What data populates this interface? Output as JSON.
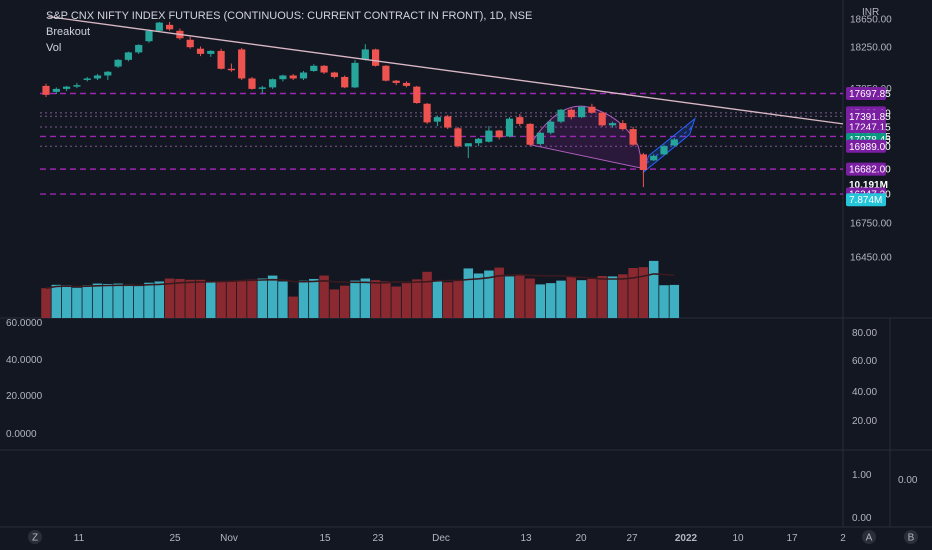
{
  "header": {
    "title": "S&P CNX NIFTY INDEX FUTURES (CONTINUOUS: CURRENT CONTRACT IN FRONT), 1D, NSE",
    "indicators": [
      "Breakout",
      "Vol"
    ],
    "currency": "INR"
  },
  "price_scale": {
    "ticks": [
      "18650.00",
      "18250.00",
      "17850.00",
      "16750.00",
      "16450.00"
    ],
    "tags": [
      {
        "label": "17697.85",
        "price": 17697.85,
        "kind": "purple"
      },
      {
        "label": "17436.90",
        "price": 17436.9,
        "kind": "purple"
      },
      {
        "label": "17391.85",
        "price": 17391.85,
        "kind": "purple"
      },
      {
        "label": "17247.15",
        "price": 17247.15,
        "kind": "purple"
      },
      {
        "label": "17121.05",
        "price": 17121.05,
        "kind": "purple"
      },
      {
        "label": "17078.45",
        "price": 17078.45,
        "kind": "teal"
      },
      {
        "label": "16989.00",
        "price": 16989.0,
        "kind": "purple"
      },
      {
        "label": "16682.00",
        "price": 16682.0,
        "kind": "purple"
      },
      {
        "label": "10.191M",
        "price": 16478,
        "kind": "dark"
      },
      {
        "label": "16347.20",
        "price": 16347.2,
        "kind": "purple"
      },
      {
        "label": "7.874M",
        "price": 16271,
        "kind": "cyan"
      }
    ]
  },
  "levels": [
    {
      "price": 17697.85,
      "style": "dashed"
    },
    {
      "price": 17436.9,
      "style": "dotted"
    },
    {
      "price": 17391.85,
      "style": "dotted"
    },
    {
      "price": 17247.15,
      "style": "dotted"
    },
    {
      "price": 17121.05,
      "style": "dashed"
    },
    {
      "price": 16989.0,
      "style": "dotted"
    },
    {
      "price": 16682.0,
      "style": "dashed"
    },
    {
      "price": 16347.2,
      "style": "dashed"
    }
  ],
  "panes": {
    "osc1": {
      "left_ticks": [
        "60.0000",
        "40.0000",
        "20.0000",
        "0.0000"
      ],
      "right_ticks": [
        "80.00",
        "60.00",
        "40.00",
        "20.00"
      ]
    },
    "osc2": {
      "right_ticks": [
        "1.00",
        "0.00"
      ],
      "value": "0.00"
    }
  },
  "time_axis": {
    "labels": [
      "11",
      "25",
      "Nov",
      "15",
      "23",
      "Dec",
      "13",
      "20",
      "27",
      "2022",
      "10",
      "17",
      "2"
    ],
    "corner_left": "Z",
    "corner_right": [
      "A",
      "B"
    ]
  },
  "colors": {
    "bg": "#131722",
    "up": "#26a69a",
    "down": "#ef5350",
    "vol_up": "#3fb0c2",
    "vol_down": "#8a2a30",
    "level": "#9c27b0",
    "tag": "#7b1fa2",
    "last": "#089981"
  },
  "chart_data": {
    "type": "candlestick",
    "title": "S&P CNX NIFTY INDEX FUTURES (CONTINUOUS: CURRENT CONTRACT IN FRONT), 1D, NSE",
    "ylim": [
      16450,
      18700
    ],
    "candles": [
      [
        17800,
        17830,
        17650,
        17680
      ],
      [
        17720,
        17780,
        17690,
        17760
      ],
      [
        17760,
        17800,
        17730,
        17790
      ],
      [
        17790,
        17840,
        17770,
        17810
      ],
      [
        17880,
        17920,
        17860,
        17900
      ],
      [
        17900,
        17960,
        17880,
        17940
      ],
      [
        17940,
        18000,
        17880,
        17990
      ],
      [
        18060,
        18160,
        18040,
        18150
      ],
      [
        18150,
        18260,
        18130,
        18250
      ],
      [
        18250,
        18360,
        18230,
        18350
      ],
      [
        18400,
        18560,
        18380,
        18540
      ],
      [
        18540,
        18660,
        18530,
        18650
      ],
      [
        18620,
        18660,
        18540,
        18560
      ],
      [
        18540,
        18570,
        18420,
        18440
      ],
      [
        18420,
        18460,
        18300,
        18320
      ],
      [
        18300,
        18330,
        18200,
        18230
      ],
      [
        18230,
        18280,
        18190,
        18270
      ],
      [
        18270,
        18300,
        18020,
        18030
      ],
      [
        18030,
        18100,
        17990,
        18010
      ],
      [
        18290,
        18310,
        17880,
        17900
      ],
      [
        17900,
        17920,
        17750,
        17760
      ],
      [
        17760,
        17800,
        17700,
        17780
      ],
      [
        17780,
        17900,
        17760,
        17890
      ],
      [
        17890,
        17950,
        17860,
        17940
      ],
      [
        17940,
        17960,
        17880,
        17900
      ],
      [
        17900,
        18000,
        17880,
        17980
      ],
      [
        18000,
        18090,
        17990,
        18070
      ],
      [
        18070,
        18080,
        17960,
        17980
      ],
      [
        17980,
        17990,
        17900,
        17920
      ],
      [
        17920,
        17940,
        17770,
        17780
      ],
      [
        17780,
        18150,
        17770,
        18110
      ],
      [
        18150,
        18360,
        18140,
        18290
      ],
      [
        18290,
        18300,
        18060,
        18070
      ],
      [
        18070,
        18080,
        17860,
        17870
      ],
      [
        17870,
        17880,
        17810,
        17840
      ],
      [
        17840,
        17860,
        17780,
        17800
      ],
      [
        17790,
        17800,
        17560,
        17570
      ],
      [
        17560,
        17570,
        17290,
        17310
      ],
      [
        17320,
        17400,
        17260,
        17380
      ],
      [
        17390,
        17410,
        17220,
        17240
      ],
      [
        17230,
        17250,
        16970,
        16990
      ],
      [
        16990,
        17020,
        16830,
        17030
      ],
      [
        17030,
        17100,
        16990,
        17090
      ],
      [
        17050,
        17260,
        17040,
        17200
      ],
      [
        17200,
        17210,
        17080,
        17110
      ],
      [
        17120,
        17380,
        17110,
        17360
      ],
      [
        17380,
        17420,
        17260,
        17290
      ],
      [
        17290,
        17300,
        16990,
        17010
      ],
      [
        17020,
        17180,
        17000,
        17170
      ],
      [
        17170,
        17340,
        17150,
        17320
      ],
      [
        17320,
        17490,
        17300,
        17480
      ],
      [
        17480,
        17500,
        17350,
        17380
      ],
      [
        17380,
        17530,
        17370,
        17520
      ],
      [
        17520,
        17560,
        17430,
        17440
      ],
      [
        17440,
        17450,
        17250,
        17270
      ],
      [
        17270,
        17320,
        17240,
        17300
      ],
      [
        17300,
        17340,
        17200,
        17220
      ],
      [
        17220,
        17250,
        16990,
        17010
      ],
      [
        16880,
        16900,
        16440,
        16670
      ],
      [
        16800,
        16880,
        16790,
        16860
      ],
      [
        16880,
        17010,
        16870,
        16990
      ],
      [
        17000,
        17100,
        16990,
        17080
      ]
    ],
    "volume": {
      "ymax": 11000000,
      "values": [
        7100000,
        7900000,
        7800000,
        7200000,
        7800000,
        8200000,
        8100000,
        8200000,
        8000000,
        7600000,
        8400000,
        8700000,
        9400000,
        9300000,
        9100000,
        9100000,
        8500000,
        8700000,
        8900000,
        8900000,
        9200000,
        9400000,
        10100000,
        8700000,
        5100000,
        8900000,
        9300000,
        10100000,
        6800000,
        7700000,
        8900000,
        9400000,
        9000000,
        8700000,
        7500000,
        8300000,
        9200000,
        11000000,
        8800000,
        8500000,
        8900000,
        11800000,
        10600000,
        11300000,
        12000000,
        9900000,
        10300000,
        9400000,
        8000000,
        8300000,
        8900000,
        9800000,
        9000000,
        9300000,
        10000000,
        9900000,
        10400000,
        11900000,
        12100000,
        13600000,
        7800000,
        7874000
      ]
    },
    "volume_ma": {
      "price_at_end": 16478
    },
    "trendline": {
      "from": [
        1,
        18730
      ],
      "to": [
        123,
        17290
      ]
    },
    "cup_pattern": "arc from candle 48 to candle 58",
    "channel": "rising channel from candle 58 to candle 62"
  }
}
